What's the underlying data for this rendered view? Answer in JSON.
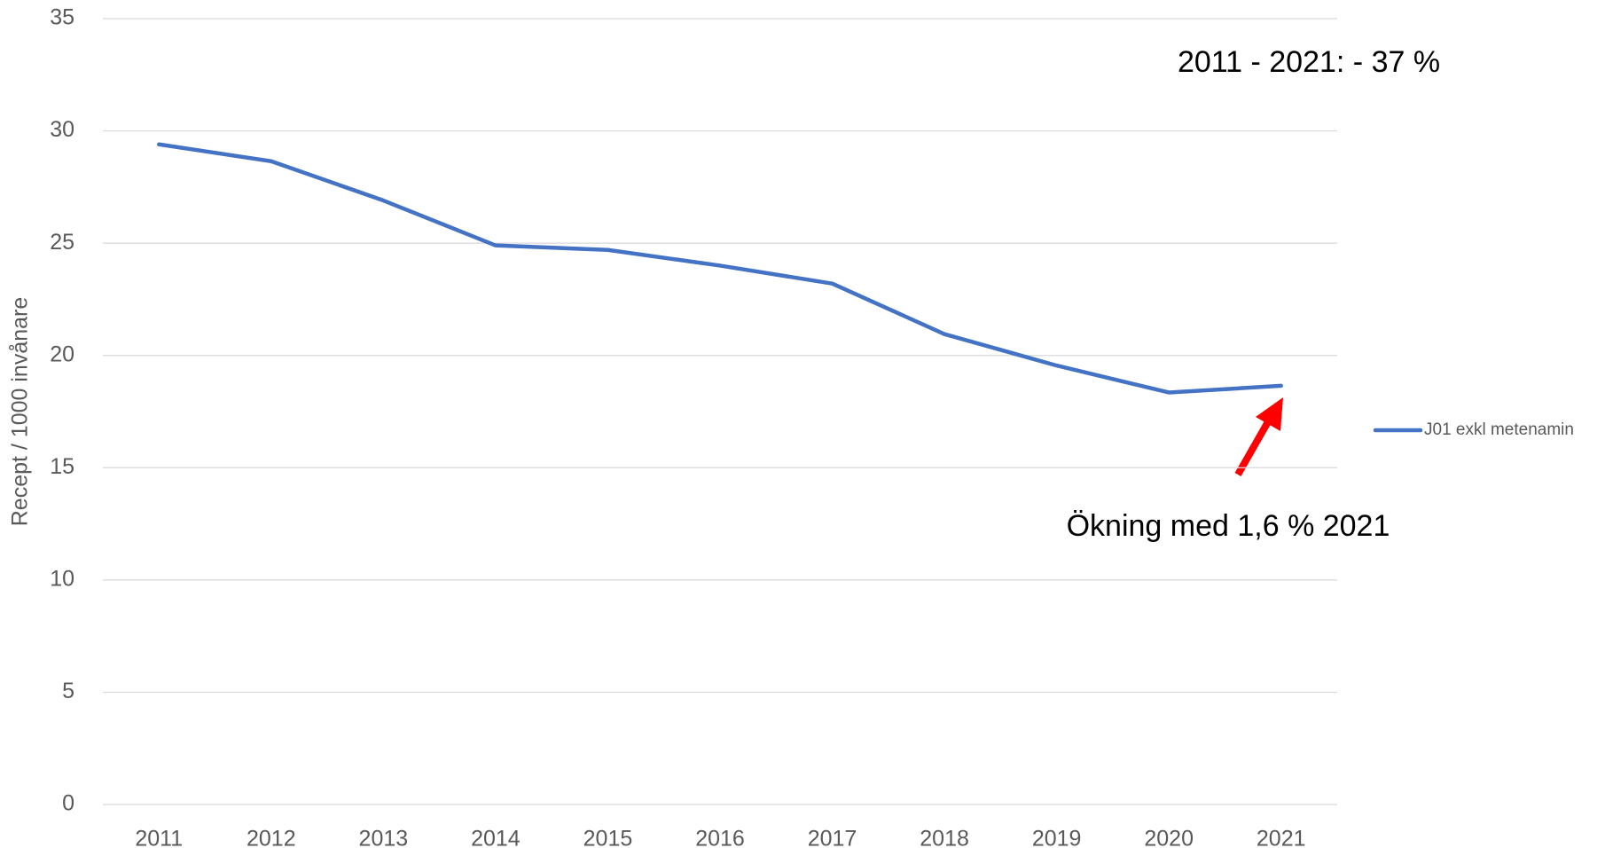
{
  "chart_data": {
    "type": "line",
    "y_label": "Recept / 1000 invånare",
    "categories": [
      "2011",
      "2012",
      "2013",
      "2014",
      "2015",
      "2016",
      "2017",
      "2018",
      "2019",
      "2020",
      "2021"
    ],
    "series": [
      {
        "name": "J01 exkl metenamin",
        "color": "#4472c4",
        "values": [
          29.4,
          28.65,
          26.9,
          24.9,
          24.7,
          24.0,
          23.2,
          20.95,
          19.55,
          18.35,
          18.65
        ]
      }
    ],
    "ylim": [
      0,
      35
    ],
    "yticks": [
      0,
      5,
      10,
      15,
      20,
      25,
      30,
      35
    ],
    "grid": true,
    "legend": "right",
    "annotations": [
      "2011 - 2021: - 37 %",
      "Ökning med 1,6 % 2021"
    ]
  }
}
